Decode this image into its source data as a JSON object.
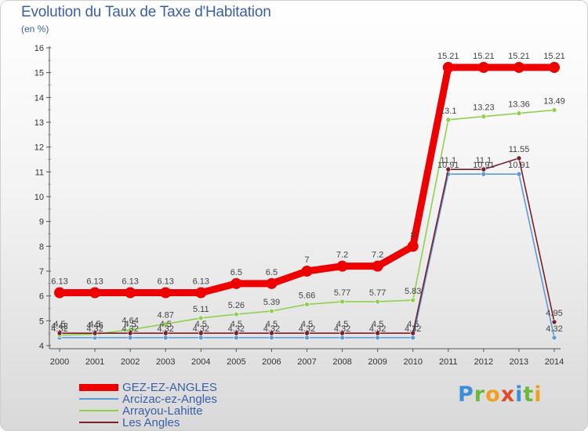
{
  "header": {
    "title": "Evolution du Taux de Taxe d'Habitation",
    "subtitle": "(en %)"
  },
  "logo": {
    "text": "Proxiti"
  },
  "chart_data": {
    "type": "line",
    "x": [
      "2000",
      "2001",
      "2002",
      "2003",
      "2004",
      "2005",
      "2006",
      "2007",
      "2008",
      "2009",
      "2010",
      "2011",
      "2012",
      "2013",
      "2014"
    ],
    "ylim": [
      4,
      16
    ],
    "yticks": [
      "4",
      "5",
      "6",
      "7",
      "8",
      "9",
      "10",
      "11",
      "12",
      "13",
      "14",
      "15",
      "16"
    ],
    "grid": false,
    "legend_position": "bottom-left",
    "series": [
      {
        "name": "GEZ-EZ-ANGLES",
        "color": "#ee0000",
        "values": [
          6.13,
          6.13,
          6.13,
          6.13,
          6.13,
          6.5,
          6.5,
          7,
          7.2,
          7.2,
          8,
          15.21,
          15.21,
          15.21,
          15.21
        ],
        "labels": [
          "6.13",
          "6.13",
          "6.13",
          "6.13",
          "6.13",
          "6.5",
          "6.5",
          "7",
          "7.2",
          "7.2",
          "8",
          "15.21",
          "15.21",
          "15.21",
          "15.21"
        ]
      },
      {
        "name": "Arcizac-ez-Angles",
        "color": "#5b9bd5",
        "values": [
          4.32,
          4.32,
          4.32,
          4.32,
          4.32,
          4.32,
          4.32,
          4.32,
          4.32,
          4.32,
          4.32,
          10.91,
          10.91,
          10.91,
          4.32
        ],
        "labels": [
          "4.32",
          "4.32",
          "4.32",
          "4.32",
          "4.32",
          "4.32",
          "4.32",
          "4.32",
          "4.32",
          "4.32",
          "4.32",
          "10.91",
          "10.91",
          "10.91",
          "4.32"
        ]
      },
      {
        "name": "Arrayou-Lahitte",
        "color": "#8fd14f",
        "values": [
          4.42,
          4.46,
          4.64,
          4.87,
          5.11,
          5.26,
          5.39,
          5.66,
          5.77,
          5.77,
          5.83,
          13.1,
          13.23,
          13.36,
          13.49
        ],
        "labels": [
          "4.42",
          "4.46",
          "4.64",
          "4.87",
          "5.11",
          "5.26",
          "5.39",
          "5.66",
          "5.77",
          "5.77",
          "5.83",
          "13.1",
          "13.23",
          "13.36",
          "13.49"
        ]
      },
      {
        "name": "Les Angles",
        "color": "#7a1f2b",
        "values": [
          4.5,
          4.5,
          4.5,
          4.5,
          4.5,
          4.5,
          4.5,
          4.5,
          4.5,
          4.5,
          4.5,
          11.1,
          11.1,
          11.55,
          4.95
        ],
        "labels": [
          "4.5",
          "4.5",
          "4.5",
          "4.5",
          "4.5",
          "4.5",
          "4.5",
          "4.5",
          "4.5",
          "4.5",
          "4.5",
          "11.1",
          "11.1",
          "11.55",
          "4.95"
        ]
      }
    ]
  }
}
